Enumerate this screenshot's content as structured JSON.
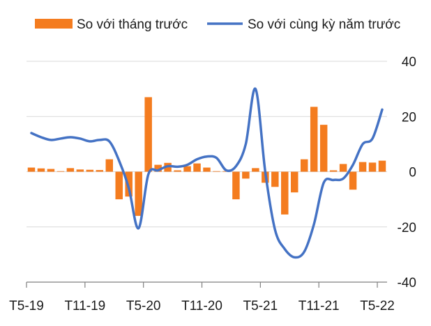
{
  "chart_data": {
    "type": "bar",
    "title": "",
    "xlabel": "",
    "ylabel": "",
    "ylim": [
      -40,
      40
    ],
    "yticks": [
      40,
      20,
      0,
      -20,
      -40
    ],
    "grid": true,
    "legend_position": "top",
    "x_labels": [
      "T5-19",
      "T11-19",
      "T5-20",
      "T11-20",
      "T5-21",
      "T11-21",
      "T5-22"
    ],
    "series": [
      {
        "name": "So với tháng trước",
        "kind": "bar",
        "color": "#f47c1f",
        "values": [
          1.5,
          1.2,
          1.0,
          0.2,
          1.3,
          0.8,
          0.7,
          0.6,
          4.5,
          -10.0,
          -9.0,
          -16.0,
          27.0,
          2.5,
          3.2,
          0.5,
          2.0,
          3.0,
          1.5,
          0.2,
          0.2,
          -10.0,
          -2.5,
          1.3,
          -4.0,
          -5.5,
          -15.5,
          -7.5,
          4.5,
          23.5,
          17.0,
          0.5,
          2.8,
          -6.5,
          3.5,
          3.3,
          4.0
        ]
      },
      {
        "name": "So với cùng kỳ năm trước",
        "kind": "line",
        "color": "#4472c4",
        "values": [
          14.0,
          12.5,
          11.5,
          12.0,
          12.5,
          12.0,
          11.0,
          11.5,
          11.0,
          4.0,
          -6.0,
          -20.5,
          -1.0,
          0.5,
          2.0,
          1.8,
          2.5,
          4.5,
          5.5,
          5.0,
          0.5,
          2.0,
          10.0,
          30.0,
          0.0,
          -21.0,
          -28.0,
          -31.0,
          -29.0,
          -19.0,
          -4.0,
          -3.0,
          -2.5,
          2.5,
          10.0,
          12.0,
          22.5
        ]
      }
    ]
  }
}
